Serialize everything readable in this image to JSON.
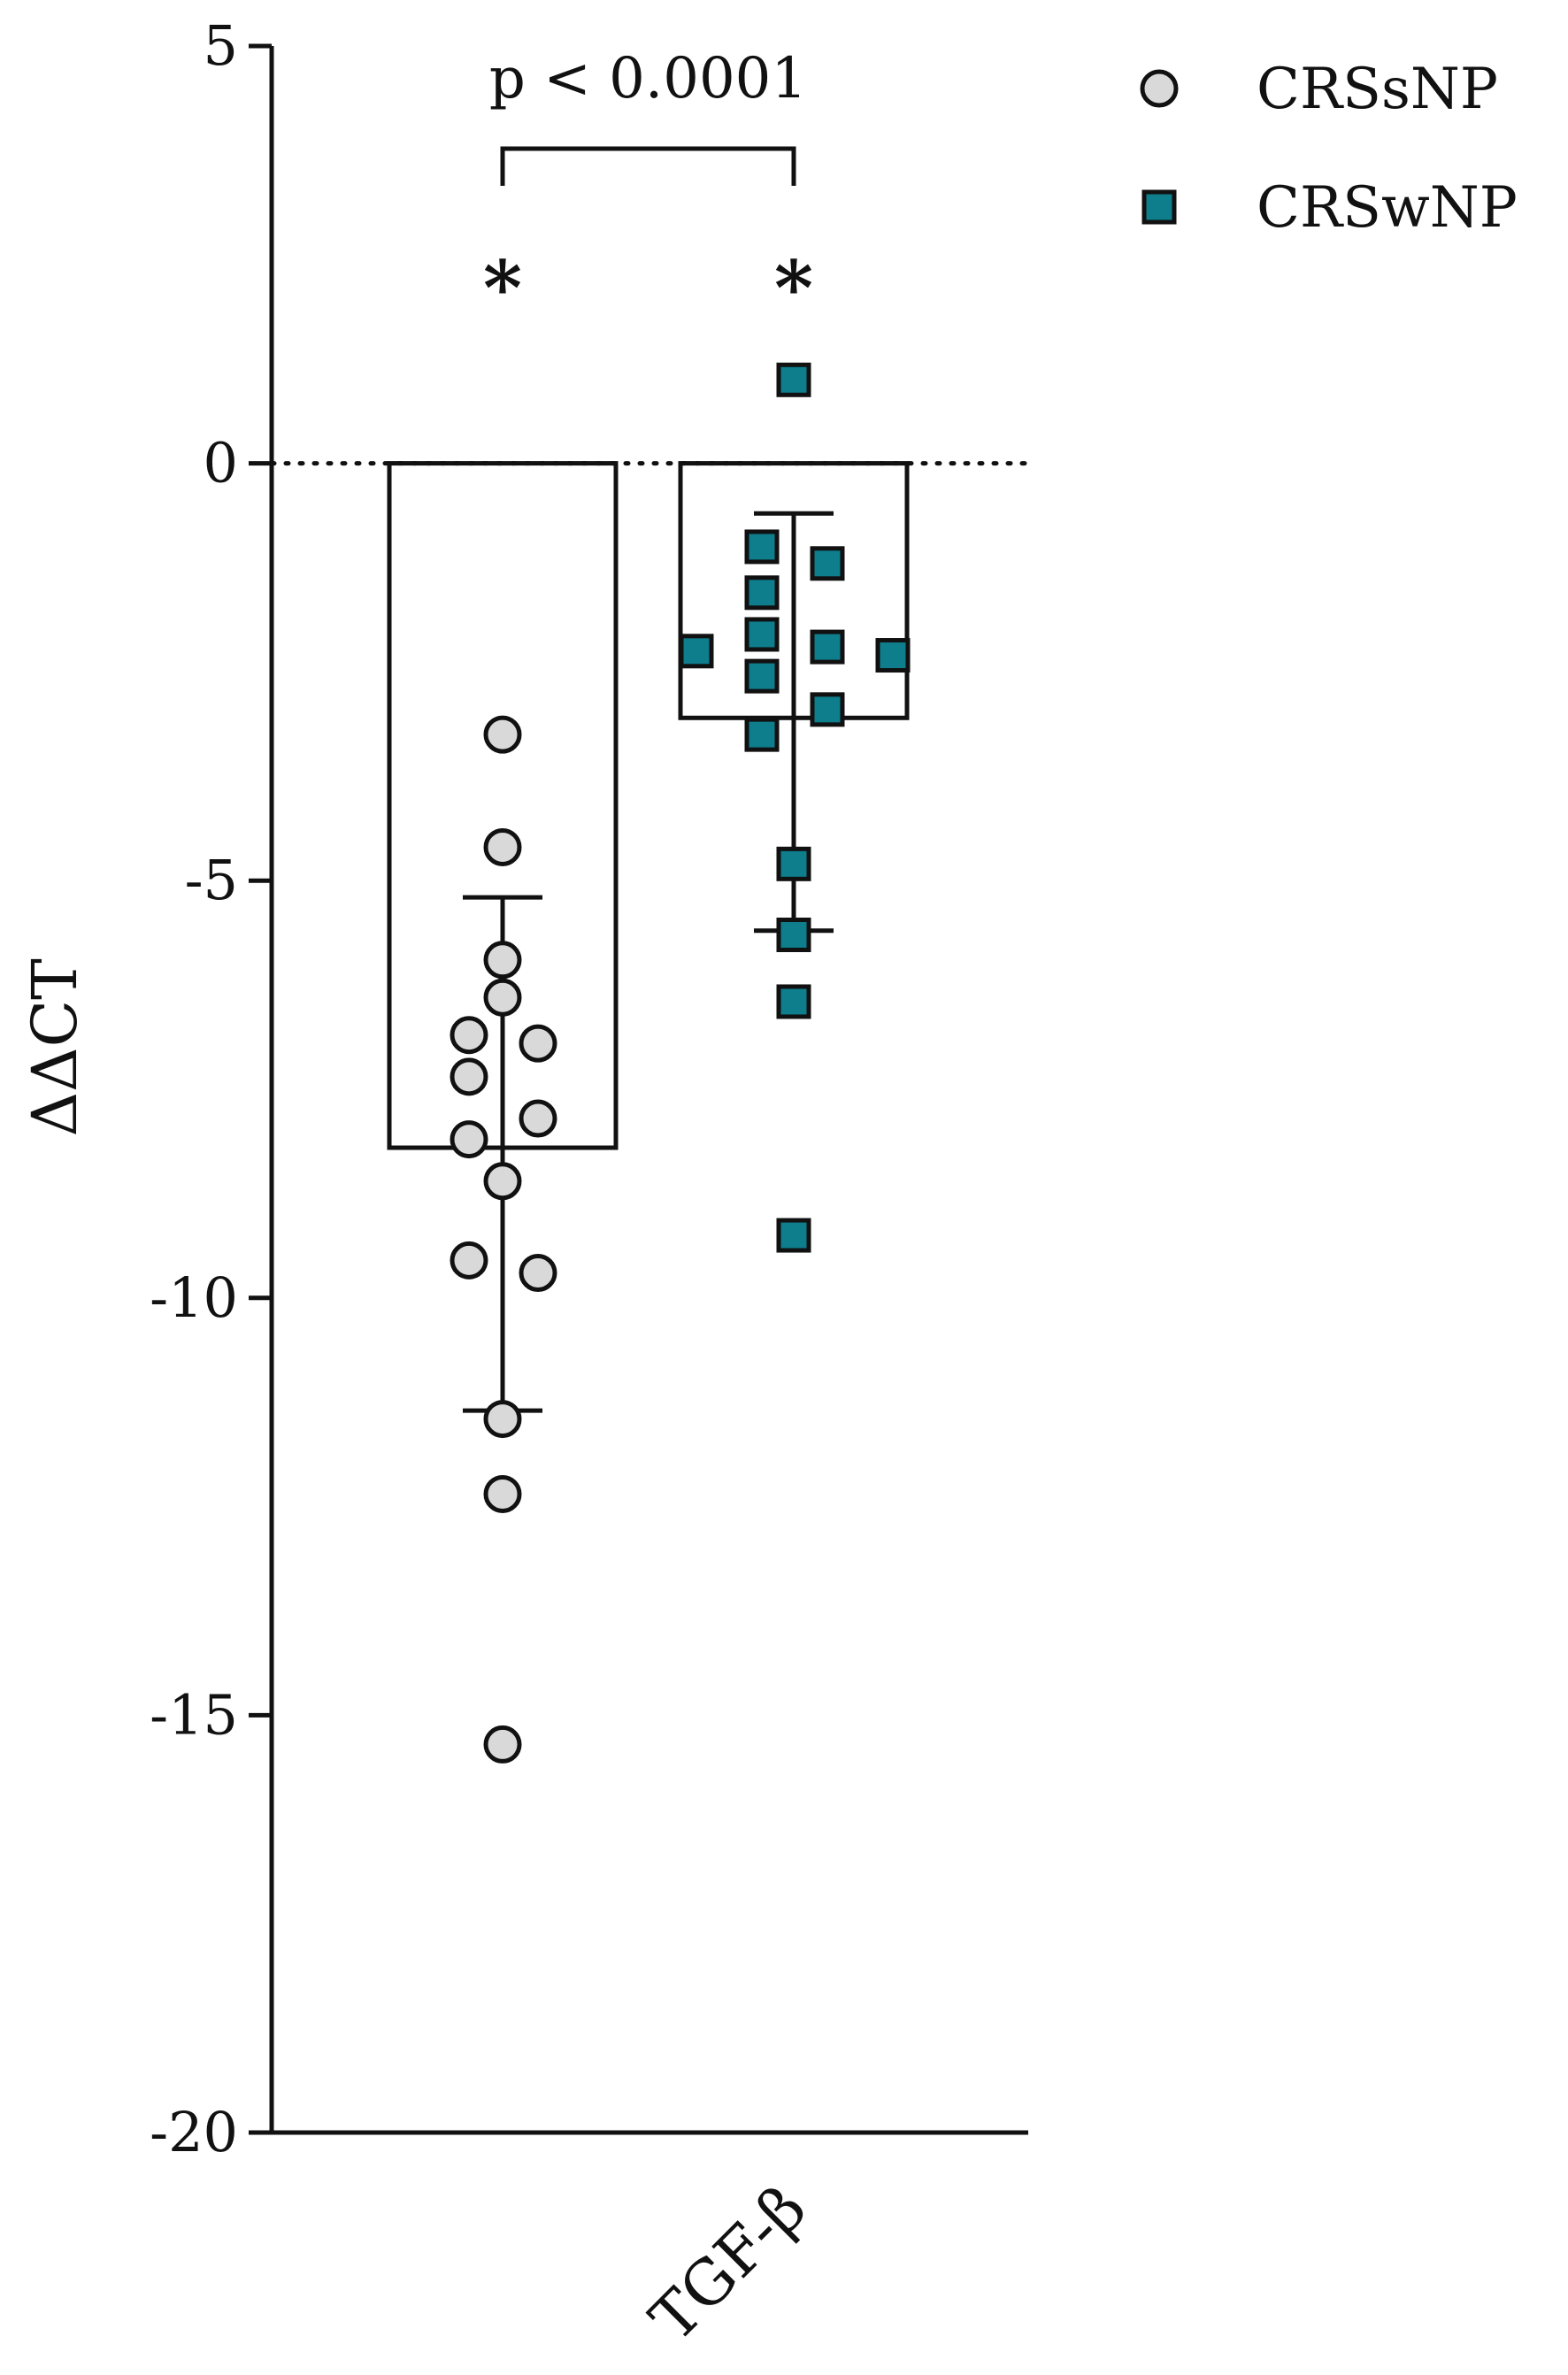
{
  "chart_data": {
    "type": "bar",
    "ylabel": "ΔΔCT",
    "xlabel": "",
    "ylim": [
      -20,
      5
    ],
    "yticks": [
      5,
      0,
      -5,
      -10,
      -15,
      -20
    ],
    "ytick_labels": [
      "5",
      "0",
      "-5",
      "-10",
      "-15",
      "-20"
    ],
    "categories": [
      "TGF-β"
    ],
    "reference_line": 0,
    "grid": false,
    "legend_position": "top-right",
    "series": [
      {
        "name": "CRSsNP",
        "marker": "circle",
        "color": "#d9d9d9",
        "mean": -8.2,
        "error_low": -11.35,
        "error_high": -5.2,
        "points": [
          -3.25,
          -4.6,
          -5.95,
          -6.4,
          -6.85,
          -7.35,
          -6.95,
          -7.85,
          -8.1,
          -8.6,
          -9.55,
          -9.7,
          -11.45,
          -12.35,
          -15.35
        ]
      },
      {
        "name": "CRSwNP",
        "marker": "square",
        "color": "#0e7d8c",
        "mean": -3.05,
        "error_low": -5.6,
        "error_high": -0.6,
        "points": [
          1.0,
          -1.0,
          -1.2,
          -1.55,
          -2.05,
          -2.2,
          -2.25,
          -2.3,
          -2.55,
          -2.95,
          -3.25,
          -4.8,
          -5.65,
          -6.45,
          -9.25
        ]
      }
    ],
    "annotations": {
      "comparison": "p < 0.0001",
      "significance_markers": [
        "*",
        "*"
      ]
    }
  }
}
